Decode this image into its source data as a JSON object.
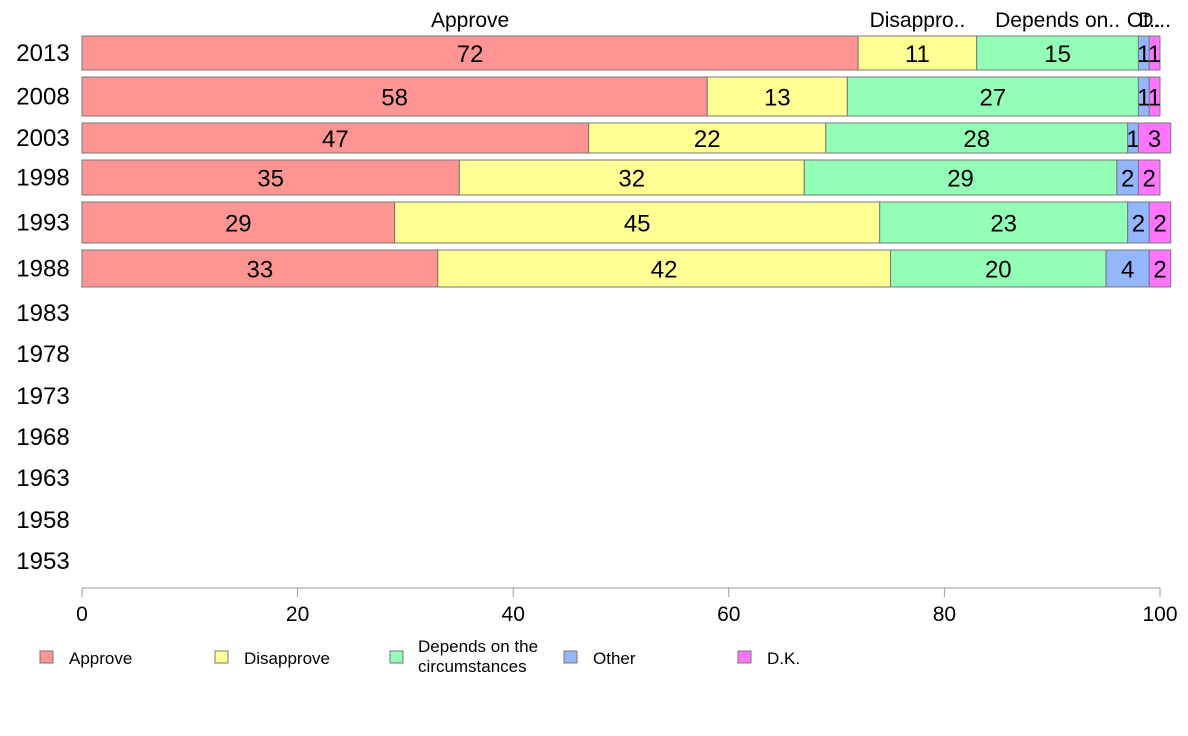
{
  "chart_data": {
    "type": "bar",
    "orientation": "horizontal",
    "stacked": true,
    "categories": [
      "2013",
      "2008",
      "2003",
      "1998",
      "1993",
      "1988",
      "1983",
      "1978",
      "1973",
      "1968",
      "1963",
      "1958",
      "1953"
    ],
    "series": [
      {
        "name": "Approve",
        "color": "#ff9592",
        "values": [
          72,
          58,
          47,
          35,
          29,
          33,
          null,
          null,
          null,
          null,
          null,
          null,
          null
        ]
      },
      {
        "name": "Disapprove",
        "color": "#ffff93",
        "values": [
          11,
          13,
          22,
          32,
          45,
          42,
          null,
          null,
          null,
          null,
          null,
          null,
          null
        ]
      },
      {
        "name": "Depends on the circumstances",
        "color": "#93ffb6",
        "values": [
          15,
          27,
          28,
          29,
          23,
          20,
          null,
          null,
          null,
          null,
          null,
          null,
          null
        ]
      },
      {
        "name": "Other",
        "color": "#93b6ff",
        "values": [
          1,
          1,
          1,
          2,
          2,
          4,
          null,
          null,
          null,
          null,
          null,
          null,
          null
        ]
      },
      {
        "name": "D.K.",
        "color": "#ff75ff",
        "values": [
          1,
          1,
          3,
          2,
          2,
          2,
          null,
          null,
          null,
          null,
          null,
          null,
          null
        ]
      }
    ],
    "column_headers": [
      "Approve",
      "Disappro..",
      "Depends on..",
      "Ot..",
      "D..."
    ],
    "legend": [
      {
        "label": "Approve",
        "color": "#ff9592"
      },
      {
        "label": "Disapprove",
        "color": "#ffff93"
      },
      {
        "label": "Depends on the circumstances",
        "lines": [
          "Depends on the",
          "circumstances"
        ],
        "color": "#93ffb6"
      },
      {
        "label": "Other",
        "color": "#93b6ff"
      },
      {
        "label": "D.K.",
        "color": "#ff75ff"
      }
    ],
    "xlim": [
      0,
      100
    ],
    "xticks": [
      "0",
      "20",
      "40",
      "60",
      "80",
      "100"
    ],
    "legend_position": "bottom",
    "grid": false,
    "title": "",
    "xlabel": "",
    "ylabel": ""
  }
}
